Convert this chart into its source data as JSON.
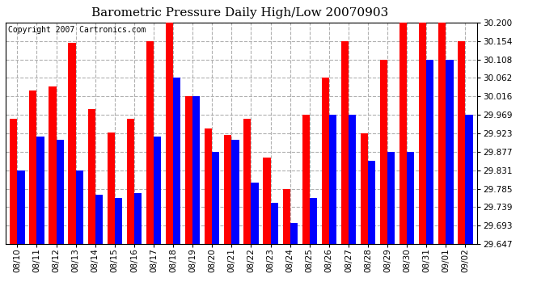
{
  "title": "Barometric Pressure Daily High/Low 20070903",
  "copyright": "Copyright 2007 Cartronics.com",
  "dates": [
    "08/10",
    "08/11",
    "08/12",
    "08/13",
    "08/14",
    "08/15",
    "08/16",
    "08/17",
    "08/18",
    "08/19",
    "08/20",
    "08/21",
    "08/22",
    "08/23",
    "08/24",
    "08/25",
    "08/26",
    "08/27",
    "08/28",
    "08/29",
    "08/30",
    "08/31",
    "09/01",
    "09/02"
  ],
  "highs": [
    29.96,
    30.03,
    30.04,
    30.15,
    29.985,
    29.925,
    29.96,
    30.154,
    30.2,
    30.016,
    29.935,
    29.92,
    29.96,
    29.862,
    29.785,
    29.969,
    30.062,
    30.154,
    29.923,
    30.108,
    30.2,
    30.2,
    30.2,
    30.154
  ],
  "lows": [
    29.831,
    29.916,
    29.908,
    29.831,
    29.77,
    29.762,
    29.774,
    29.916,
    30.062,
    30.016,
    29.877,
    29.908,
    29.8,
    29.75,
    29.7,
    29.762,
    29.969,
    29.969,
    29.854,
    29.877,
    29.877,
    30.108,
    30.108,
    29.969
  ],
  "high_color": "#ff0000",
  "low_color": "#0000ff",
  "bg_color": "#ffffff",
  "grid_color": "#b0b0b0",
  "ymin": 29.647,
  "ymax": 30.2,
  "yticks": [
    29.647,
    29.693,
    29.739,
    29.785,
    29.831,
    29.877,
    29.923,
    29.969,
    30.016,
    30.062,
    30.108,
    30.154,
    30.2
  ],
  "title_fontsize": 11,
  "tick_fontsize": 7.5,
  "copyright_fontsize": 7
}
